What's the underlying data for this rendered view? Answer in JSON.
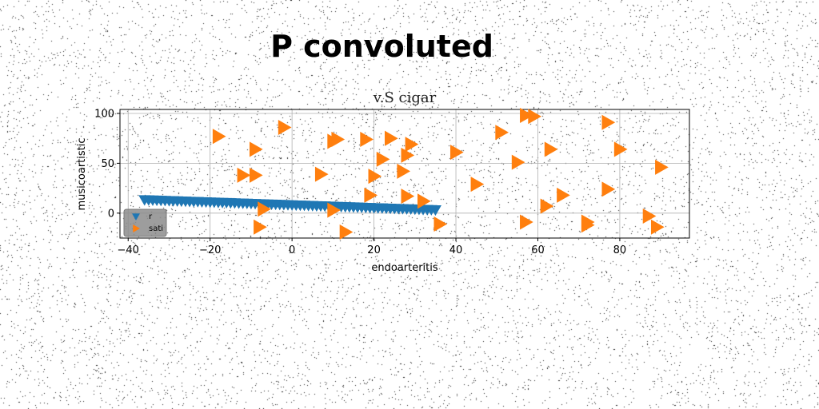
{
  "suptitle": "P convoluted",
  "chart_data": {
    "type": "scatter",
    "title": "v.S cigar",
    "xlabel": "endoarteritis",
    "ylabel": "musicoartistic",
    "xlim": [
      -42,
      97
    ],
    "ylim": [
      -25,
      104
    ],
    "xticks": [
      -40,
      -20,
      0,
      20,
      40,
      60,
      80
    ],
    "yticks": [
      0,
      50,
      100
    ],
    "grid": true,
    "legend_position": "lower-left",
    "series": [
      {
        "name": "r",
        "marker": "triangle-down",
        "color": "#1f77b4",
        "x": [
          -36,
          -35,
          -34,
          -33,
          -32,
          -31,
          -30,
          -29,
          -28,
          -27,
          -26,
          -25,
          -24,
          -23,
          -22,
          -21,
          -20,
          -19,
          -18,
          -17,
          -16,
          -15,
          -14,
          -13,
          -12,
          -11,
          -10,
          -9,
          -8,
          -7,
          -6,
          -5,
          -4,
          -3,
          -2,
          -1,
          0,
          1,
          2,
          3,
          4,
          5,
          6,
          7,
          8,
          9,
          10,
          11,
          12,
          13,
          14,
          15,
          16,
          17,
          18,
          19,
          20,
          21,
          22,
          23,
          24,
          25,
          26,
          27,
          28,
          29,
          30,
          31,
          32,
          33,
          34,
          35
        ],
        "y": [
          13.5,
          13.4,
          13.2,
          13.1,
          12.9,
          12.8,
          12.6,
          12.5,
          12.4,
          12.2,
          12.1,
          11.9,
          11.8,
          11.7,
          11.5,
          11.4,
          11.2,
          11.1,
          10.9,
          10.8,
          10.7,
          10.5,
          10.4,
          10.2,
          10.1,
          10.0,
          9.8,
          9.7,
          9.5,
          9.4,
          9.2,
          9.1,
          9.0,
          8.8,
          8.7,
          8.5,
          8.4,
          8.2,
          8.1,
          8.0,
          7.8,
          7.7,
          7.5,
          7.4,
          7.3,
          7.1,
          7.0,
          6.8,
          6.7,
          6.5,
          6.4,
          6.3,
          6.1,
          6.0,
          5.8,
          5.7,
          5.5,
          5.4,
          5.3,
          5.1,
          5.0,
          4.8,
          4.7,
          4.6,
          4.4,
          4.3,
          4.1,
          4.0,
          3.8,
          3.7,
          3.6,
          3.4
        ]
      },
      {
        "name": "sati",
        "marker": "triangle-right",
        "color": "#ff7f0e",
        "x": [
          -18,
          -9,
          -2,
          10,
          11,
          18,
          24,
          29,
          57,
          59,
          51,
          77,
          63,
          80,
          40,
          28,
          22,
          55,
          -12,
          -9,
          7,
          20,
          27,
          90,
          45,
          77,
          66,
          19,
          28,
          32,
          62,
          -7,
          10,
          87,
          36,
          57,
          72,
          72,
          89,
          -8,
          13
        ],
        "y": [
          77,
          64,
          86,
          72,
          74,
          74,
          75,
          69,
          98,
          97,
          81,
          91,
          64,
          64,
          61,
          58,
          54,
          51,
          38,
          38,
          39,
          37,
          42,
          46,
          29,
          24,
          18,
          18,
          17,
          12,
          7,
          4,
          3,
          -3,
          -11,
          -9,
          -9,
          -12,
          -14,
          -14,
          -19
        ]
      }
    ]
  }
}
